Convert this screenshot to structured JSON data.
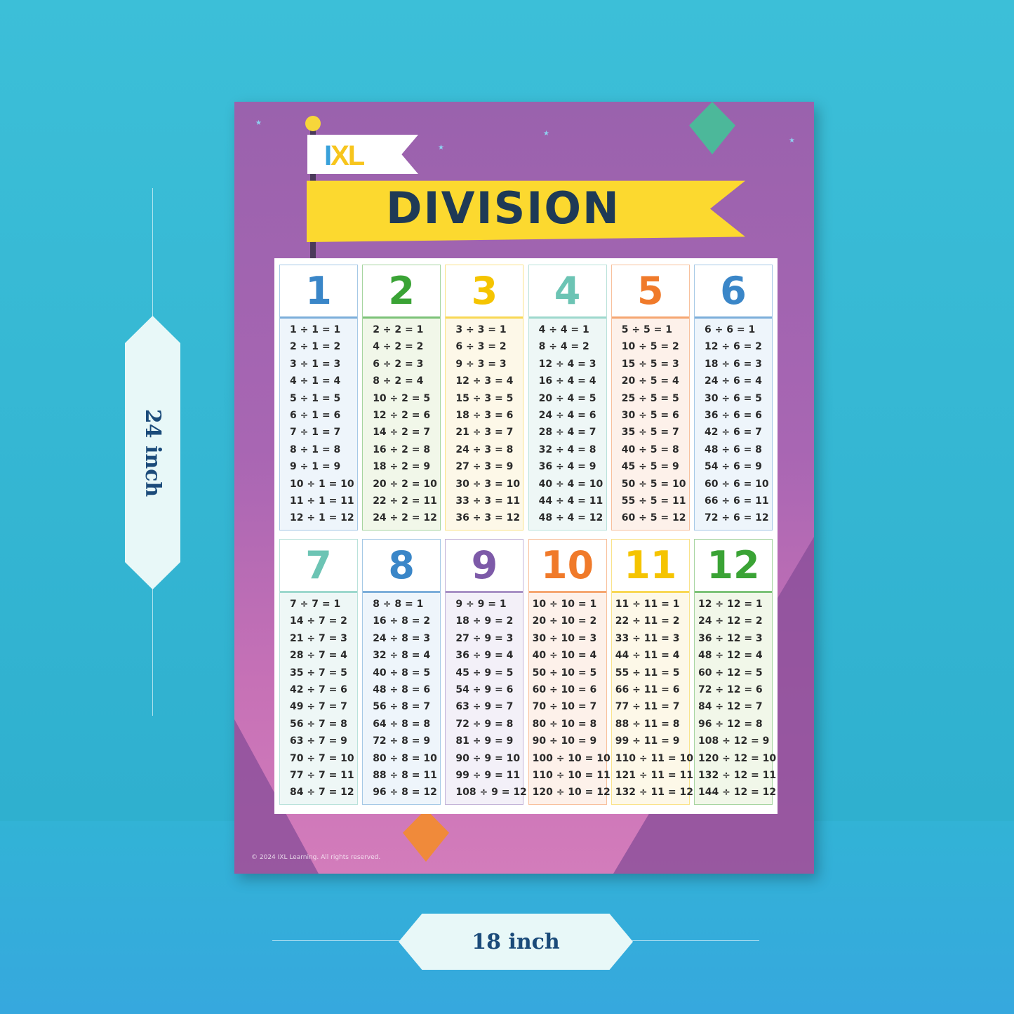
{
  "poster": {
    "logo": "IXL",
    "title": "DIVISION",
    "copyright": "© 2024 IXL Learning. All rights reserved."
  },
  "dimensions": {
    "height": "24 inch",
    "width": "18 inch"
  },
  "cards": [
    {
      "number": "1",
      "color": "#3a86c8",
      "tint": "#eef5fb",
      "rows": [
        "1 ÷ 1 = 1",
        "2 ÷ 1 = 2",
        "3 ÷ 1 = 3",
        "4 ÷ 1 = 4",
        "5 ÷ 1 = 5",
        "6 ÷ 1 = 6",
        "7 ÷ 1 = 7",
        "8 ÷ 1 = 8",
        "9 ÷ 1 = 9",
        "10 ÷ 1 = 10",
        "11 ÷ 1 = 11",
        "12 ÷ 1 = 12"
      ]
    },
    {
      "number": "2",
      "color": "#3aa335",
      "tint": "#f1f7e9",
      "rows": [
        "2 ÷ 2 = 1",
        "4 ÷ 2 = 2",
        "6 ÷ 2 = 3",
        "8 ÷ 2 = 4",
        "10 ÷ 2 = 5",
        "12 ÷ 2 = 6",
        "14 ÷ 2 = 7",
        "16 ÷ 2 = 8",
        "18 ÷ 2 = 9",
        "20 ÷ 2 = 10",
        "22 ÷ 2 = 11",
        "24 ÷ 2 = 12"
      ]
    },
    {
      "number": "3",
      "color": "#f5c400",
      "tint": "#fdf8e8",
      "rows": [
        "3 ÷ 3 = 1",
        "6 ÷ 3 = 2",
        "9 ÷ 3 = 3",
        "12 ÷ 3 = 4",
        "15 ÷ 3 = 5",
        "18 ÷ 3 = 6",
        "21 ÷ 3 = 7",
        "24 ÷ 3 = 8",
        "27 ÷ 3 = 9",
        "30 ÷ 3 = 10",
        "33 ÷ 3 = 11",
        "36 ÷ 3 = 12"
      ]
    },
    {
      "number": "4",
      "color": "#6cc4b4",
      "tint": "#eef7f6",
      "rows": [
        "4 ÷ 4 = 1",
        "8 ÷ 4 = 2",
        "12 ÷ 4 = 3",
        "16 ÷ 4 = 4",
        "20 ÷ 4 = 5",
        "24 ÷ 4 = 6",
        "28 ÷ 4 = 7",
        "32 ÷ 4 = 8",
        "36 ÷ 4 = 9",
        "40 ÷ 4 = 10",
        "44 ÷ 4 = 11",
        "48 ÷ 4 = 12"
      ]
    },
    {
      "number": "5",
      "color": "#f07a2a",
      "tint": "#fdf1ea",
      "rows": [
        "5 ÷ 5 = 1",
        "10 ÷ 5 = 2",
        "15 ÷ 5 = 3",
        "20 ÷ 5 = 4",
        "25 ÷ 5 = 5",
        "30 ÷ 5 = 6",
        "35 ÷ 5 = 7",
        "40 ÷ 5 = 8",
        "45 ÷ 5 = 9",
        "50 ÷ 5 = 10",
        "55 ÷ 5 = 11",
        "60 ÷ 5 = 12"
      ]
    },
    {
      "number": "6",
      "color": "#3a86c8",
      "tint": "#eef5fb",
      "rows": [
        "6 ÷ 6 = 1",
        "12 ÷ 6 = 2",
        "18 ÷ 6 = 3",
        "24 ÷ 6 = 4",
        "30 ÷ 6 = 5",
        "36 ÷ 6 = 6",
        "42 ÷ 6 = 7",
        "48 ÷ 6 = 8",
        "54 ÷ 6 = 9",
        "60 ÷ 6 = 10",
        "66 ÷ 6 = 11",
        "72 ÷ 6 = 12"
      ]
    },
    {
      "number": "7",
      "color": "#6cc4b4",
      "tint": "#eef7f6",
      "rows": [
        "7 ÷ 7 = 1",
        "14 ÷ 7 = 2",
        "21 ÷ 7 = 3",
        "28 ÷ 7 = 4",
        "35 ÷ 7 = 5",
        "42 ÷ 7 = 6",
        "49 ÷ 7 = 7",
        "56 ÷ 7 = 8",
        "63 ÷ 7 = 9",
        "70 ÷ 7 = 10",
        "77 ÷ 7 = 11",
        "84 ÷ 7 = 12"
      ]
    },
    {
      "number": "8",
      "color": "#3a86c8",
      "tint": "#eef5fb",
      "rows": [
        "8 ÷ 8 = 1",
        "16 ÷ 8 = 2",
        "24 ÷ 8 = 3",
        "32 ÷ 8 = 4",
        "40 ÷ 8 = 5",
        "48 ÷ 8 = 6",
        "56 ÷ 8 = 7",
        "64 ÷ 8 = 8",
        "72 ÷ 8 = 9",
        "80 ÷ 8 = 10",
        "88 ÷ 8 = 11",
        "96 ÷ 8 = 12"
      ]
    },
    {
      "number": "9",
      "color": "#7d5aa8",
      "tint": "#f3f0f8",
      "rows": [
        "9 ÷ 9 = 1",
        "18 ÷ 9 = 2",
        "27 ÷ 9 = 3",
        "36 ÷ 9 = 4",
        "45 ÷ 9 = 5",
        "54 ÷ 9 = 6",
        "63 ÷ 9 = 7",
        "72 ÷ 9 = 8",
        "81 ÷ 9 = 9",
        "90 ÷ 9 = 10",
        "99 ÷ 9 = 11",
        "108 ÷ 9 = 12"
      ]
    },
    {
      "number": "10",
      "color": "#f07a2a",
      "tint": "#fdf1ea",
      "rows": [
        "10 ÷ 10 = 1",
        "20 ÷ 10 = 2",
        "30 ÷ 10 = 3",
        "40 ÷ 10 = 4",
        "50 ÷ 10 = 5",
        "60 ÷ 10 = 6",
        "70 ÷ 10 = 7",
        "80 ÷ 10 = 8",
        "90 ÷ 10 = 9",
        "100 ÷ 10 = 10",
        "110 ÷ 10 = 11",
        "120 ÷ 10 = 12"
      ]
    },
    {
      "number": "11",
      "color": "#f5c400",
      "tint": "#fdf8e8",
      "rows": [
        "11 ÷ 11 = 1",
        "22 ÷ 11 = 2",
        "33 ÷ 11 = 3",
        "44 ÷ 11 = 4",
        "55 ÷ 11 = 5",
        "66 ÷ 11 = 6",
        "77 ÷ 11 = 7",
        "88 ÷ 11 = 8",
        "99 ÷ 11 = 9",
        "110 ÷ 11 = 10",
        "121 ÷ 11 = 11",
        "132 ÷ 11 = 12"
      ]
    },
    {
      "number": "12",
      "color": "#3aa335",
      "tint": "#f1f7e9",
      "rows": [
        "12 ÷ 12 = 1",
        "24 ÷ 12 = 2",
        "36 ÷ 12 = 3",
        "48 ÷ 12 = 4",
        "60 ÷ 12 = 5",
        "72 ÷ 12 = 6",
        "84 ÷ 12 = 7",
        "96 ÷ 12 = 8",
        "108 ÷ 12 = 9",
        "120 ÷ 12 = 10",
        "132 ÷ 12 = 11",
        "144 ÷ 12 = 12"
      ]
    }
  ]
}
